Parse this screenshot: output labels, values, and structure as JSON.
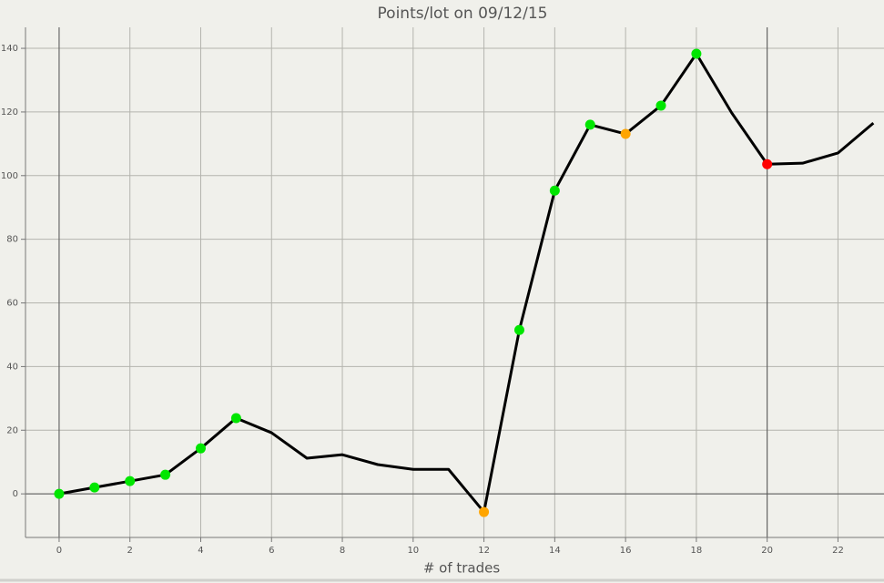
{
  "chart_data": {
    "type": "line",
    "title": "Points/lot on 09/12/15",
    "x_label": "# of trades",
    "x": [
      0,
      1,
      2,
      3,
      4,
      5,
      6,
      7,
      8,
      9,
      10,
      11,
      12,
      13,
      14,
      15,
      16,
      17,
      18,
      19,
      20,
      21,
      22,
      23
    ],
    "series": [
      {
        "color": "#000000",
        "values": [
          0,
          2.0,
          4.0,
          6.0,
          14.3,
          23.8,
          19.2,
          11.2,
          12.3,
          9.2,
          7.7,
          7.7,
          -5.7,
          51.5,
          95.3,
          116.0,
          113.1,
          122.0,
          138.3,
          119.7,
          103.6,
          103.9,
          107.1,
          116.5
        ],
        "marker_colors": [
          "#00e600",
          "#00e600",
          "#00e600",
          "#00e600",
          "#00e600",
          "#00e600",
          null,
          null,
          null,
          null,
          null,
          null,
          "#ffa500",
          "#00e600",
          "#00e600",
          "#00e600",
          "#ffa500",
          "#00e600",
          "#00e600",
          null,
          "#ff0000",
          null,
          null,
          null
        ]
      }
    ],
    "xlim": [
      -0.95,
      23.3
    ],
    "ylim": [
      -13.7,
      146.6
    ],
    "xticks": [
      0,
      2,
      4,
      6,
      8,
      10,
      12,
      14,
      16,
      18,
      20,
      22
    ],
    "yticks": [
      0,
      20,
      40,
      60,
      80,
      100,
      120,
      140
    ],
    "reference_lines_x": [
      0,
      20
    ],
    "reference_lines_y": [
      0
    ],
    "grid": true
  }
}
